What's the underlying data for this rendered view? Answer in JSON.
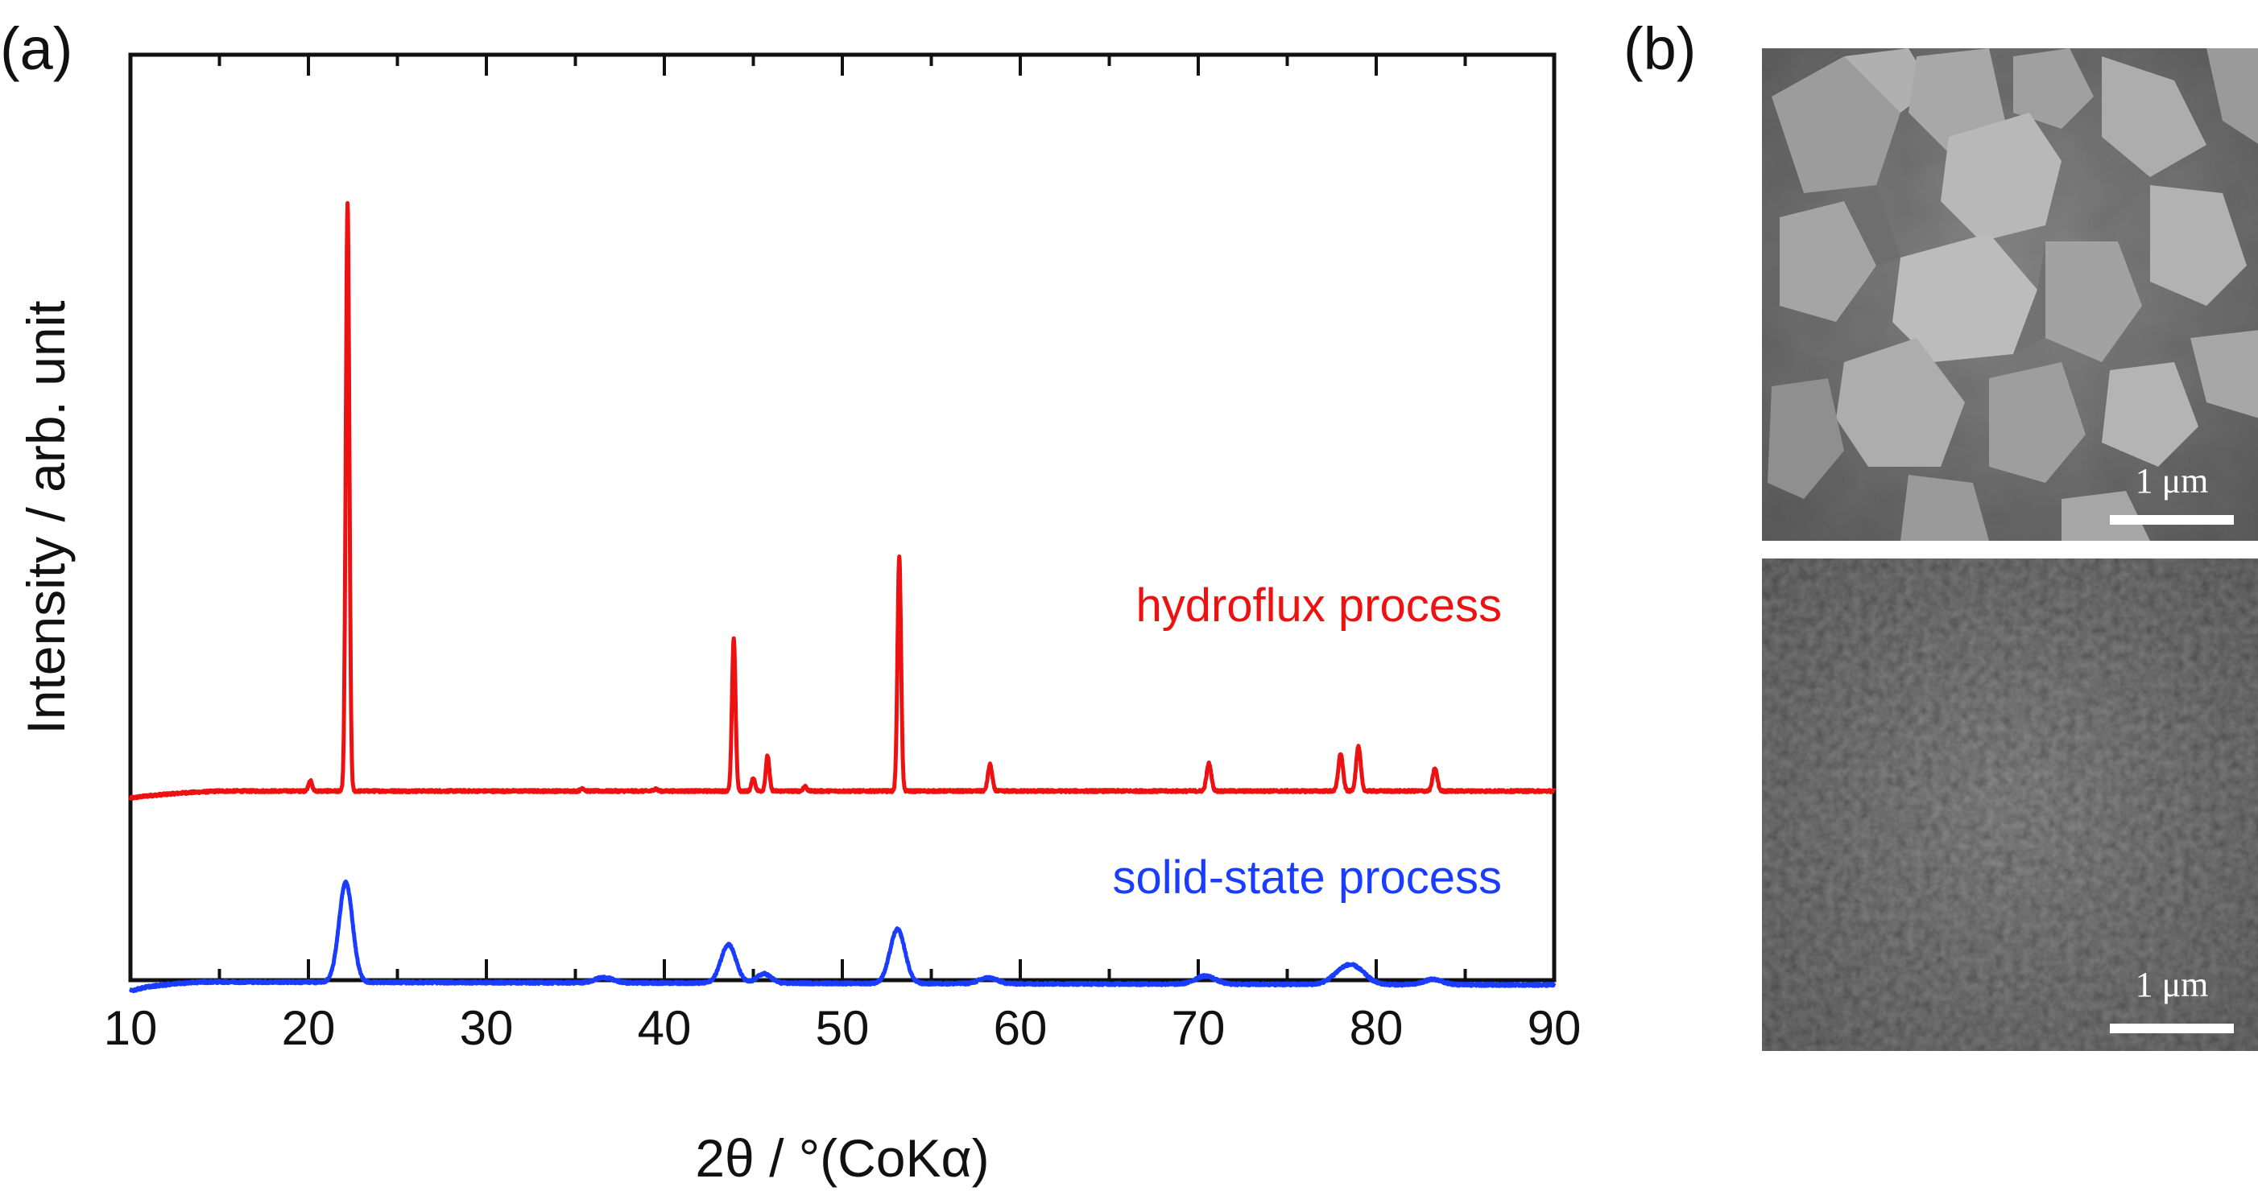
{
  "panels": {
    "a_label": "(a)",
    "b_label": "(b)"
  },
  "chart_data": {
    "type": "line",
    "xlabel": "2θ / °(CoKα)",
    "ylabel": "Intensity / arb. unit",
    "xlim": [
      10,
      90
    ],
    "x_ticks": [
      10,
      20,
      30,
      40,
      50,
      60,
      70,
      80,
      90
    ],
    "y_ticks_shown": false,
    "grid": false,
    "series": [
      {
        "name": "hydroflux process",
        "color": "#ee1111",
        "baseline": 0.0,
        "background": [
          [
            10,
            -0.012
          ],
          [
            11,
            -0.008
          ],
          [
            13,
            -0.003
          ],
          [
            15,
            0.0
          ],
          [
            20,
            0.0
          ],
          [
            90,
            0.0
          ]
        ],
        "peaks": [
          {
            "x": 20.1,
            "height": 0.018,
            "width": 0.1
          },
          {
            "x": 22.2,
            "height": 1.0,
            "width": 0.1
          },
          {
            "x": 35.4,
            "height": 0.005,
            "width": 0.1
          },
          {
            "x": 39.5,
            "height": 0.004,
            "width": 0.1
          },
          {
            "x": 43.9,
            "height": 0.26,
            "width": 0.1
          },
          {
            "x": 45.0,
            "height": 0.022,
            "width": 0.1
          },
          {
            "x": 45.8,
            "height": 0.06,
            "width": 0.1
          },
          {
            "x": 47.9,
            "height": 0.008,
            "width": 0.1
          },
          {
            "x": 53.2,
            "height": 0.4,
            "width": 0.1
          },
          {
            "x": 58.3,
            "height": 0.045,
            "width": 0.12
          },
          {
            "x": 70.6,
            "height": 0.047,
            "width": 0.13
          },
          {
            "x": 78.0,
            "height": 0.063,
            "width": 0.13
          },
          {
            "x": 79.0,
            "height": 0.075,
            "width": 0.13
          },
          {
            "x": 83.3,
            "height": 0.038,
            "width": 0.13
          }
        ]
      },
      {
        "name": "solid-state process",
        "color": "#1a3cff",
        "baseline": -0.325,
        "background": [
          [
            10,
            -0.015
          ],
          [
            11,
            -0.008
          ],
          [
            12.5,
            -0.003
          ],
          [
            14,
            0.0
          ],
          [
            90,
            -0.005
          ]
        ],
        "peaks": [
          {
            "x": 22.1,
            "height": 0.17,
            "width": 0.38
          },
          {
            "x": 36.6,
            "height": 0.009,
            "width": 0.5
          },
          {
            "x": 43.6,
            "height": 0.066,
            "width": 0.42
          },
          {
            "x": 45.6,
            "height": 0.016,
            "width": 0.4
          },
          {
            "x": 53.1,
            "height": 0.092,
            "width": 0.42
          },
          {
            "x": 58.2,
            "height": 0.01,
            "width": 0.5
          },
          {
            "x": 70.4,
            "height": 0.014,
            "width": 0.55
          },
          {
            "x": 78.1,
            "height": 0.02,
            "width": 0.6
          },
          {
            "x": 78.9,
            "height": 0.022,
            "width": 0.6
          },
          {
            "x": 83.2,
            "height": 0.009,
            "width": 0.5
          }
        ]
      }
    ]
  },
  "sem_images": [
    {
      "scale_bar_label": "1 μm"
    },
    {
      "scale_bar_label": "1 μm"
    }
  ]
}
